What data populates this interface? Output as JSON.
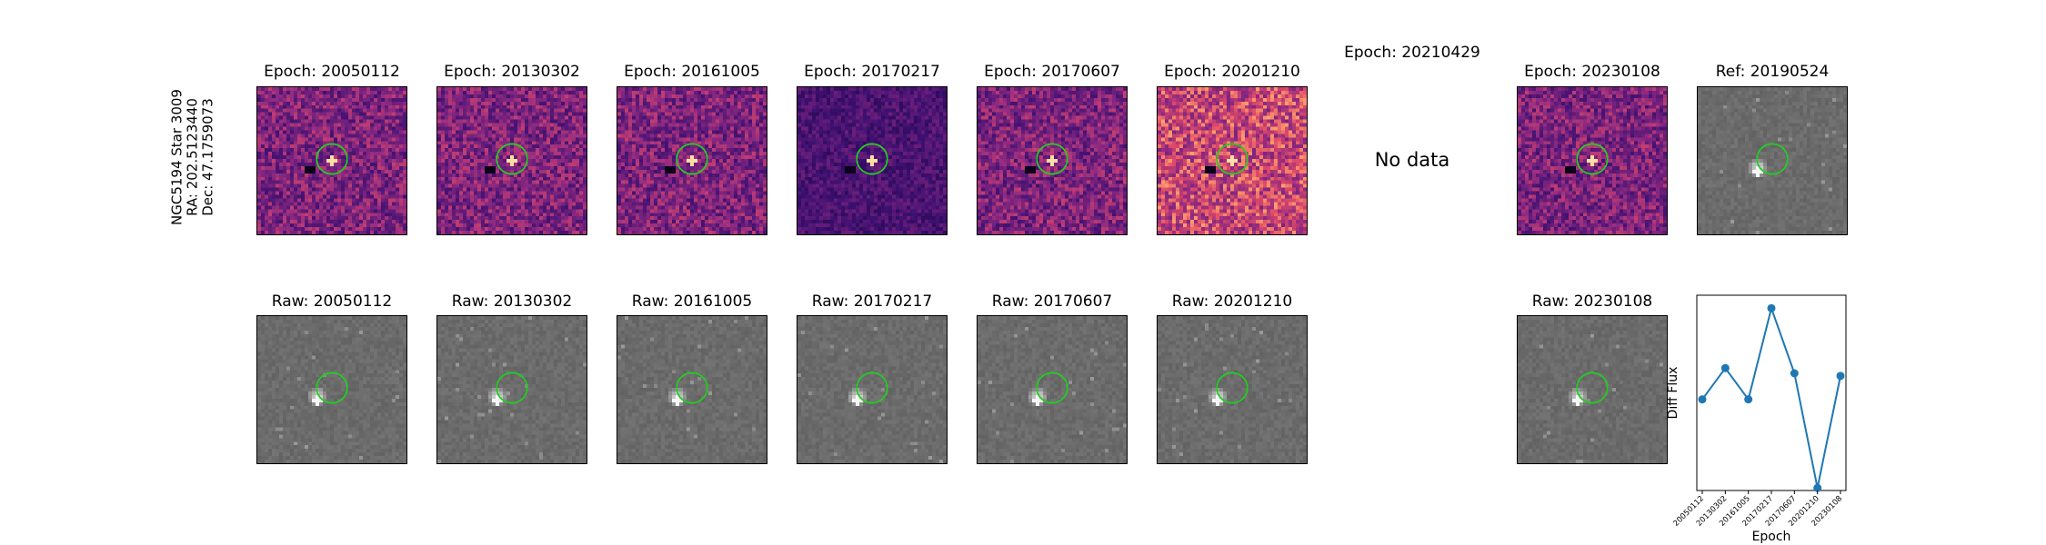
{
  "row_label": {
    "line1": "NGC5194 Star 3009",
    "line2": "RA: 202.5123440",
    "line3": "Dec: 47.1759073"
  },
  "diff_panels": [
    {
      "title": "Epoch: 20050112",
      "has_data": true,
      "variant": "normal"
    },
    {
      "title": "Epoch: 20130302",
      "has_data": true,
      "variant": "normal"
    },
    {
      "title": "Epoch: 20161005",
      "has_data": true,
      "variant": "normal"
    },
    {
      "title": "Epoch: 20170217",
      "has_data": true,
      "variant": "dark"
    },
    {
      "title": "Epoch: 20170607",
      "has_data": true,
      "variant": "normal"
    },
    {
      "title": "Epoch: 20201210",
      "has_data": true,
      "variant": "bright"
    },
    {
      "title": "Epoch: 20210429",
      "has_data": false,
      "variant": "none"
    },
    {
      "title": "Epoch: 20230108",
      "has_data": true,
      "variant": "normal"
    }
  ],
  "ref_panel": {
    "title": "Ref: 20190524"
  },
  "nodata_label": "No data",
  "raw_panels": [
    {
      "title": "Raw: 20050112"
    },
    {
      "title": "Raw: 20130302"
    },
    {
      "title": "Raw: 20161005"
    },
    {
      "title": "Raw: 20170217"
    },
    {
      "title": "Raw: 20170607"
    },
    {
      "title": "Raw: 20201210"
    },
    {
      "title": "Raw: 20230108"
    }
  ],
  "colors": {
    "circle": "#22cc22",
    "line": "#1f77b4",
    "magma_dark": "#3b0f70",
    "magma_mid": "#b73779",
    "magma_bright": "#fc8961"
  },
  "chart_data": {
    "type": "line",
    "title": "",
    "xlabel": "Epoch",
    "ylabel": "Diff Flux",
    "categories": [
      "20050112",
      "20130302",
      "20161005",
      "20170217",
      "20170607",
      "20201210",
      "20230108"
    ],
    "series": [
      {
        "values": [
          0.5,
          0.74,
          0.5,
          1.2,
          0.7,
          -0.18,
          0.68
        ]
      }
    ],
    "ylim": [
      -0.2,
      1.3
    ],
    "grid": false
  }
}
